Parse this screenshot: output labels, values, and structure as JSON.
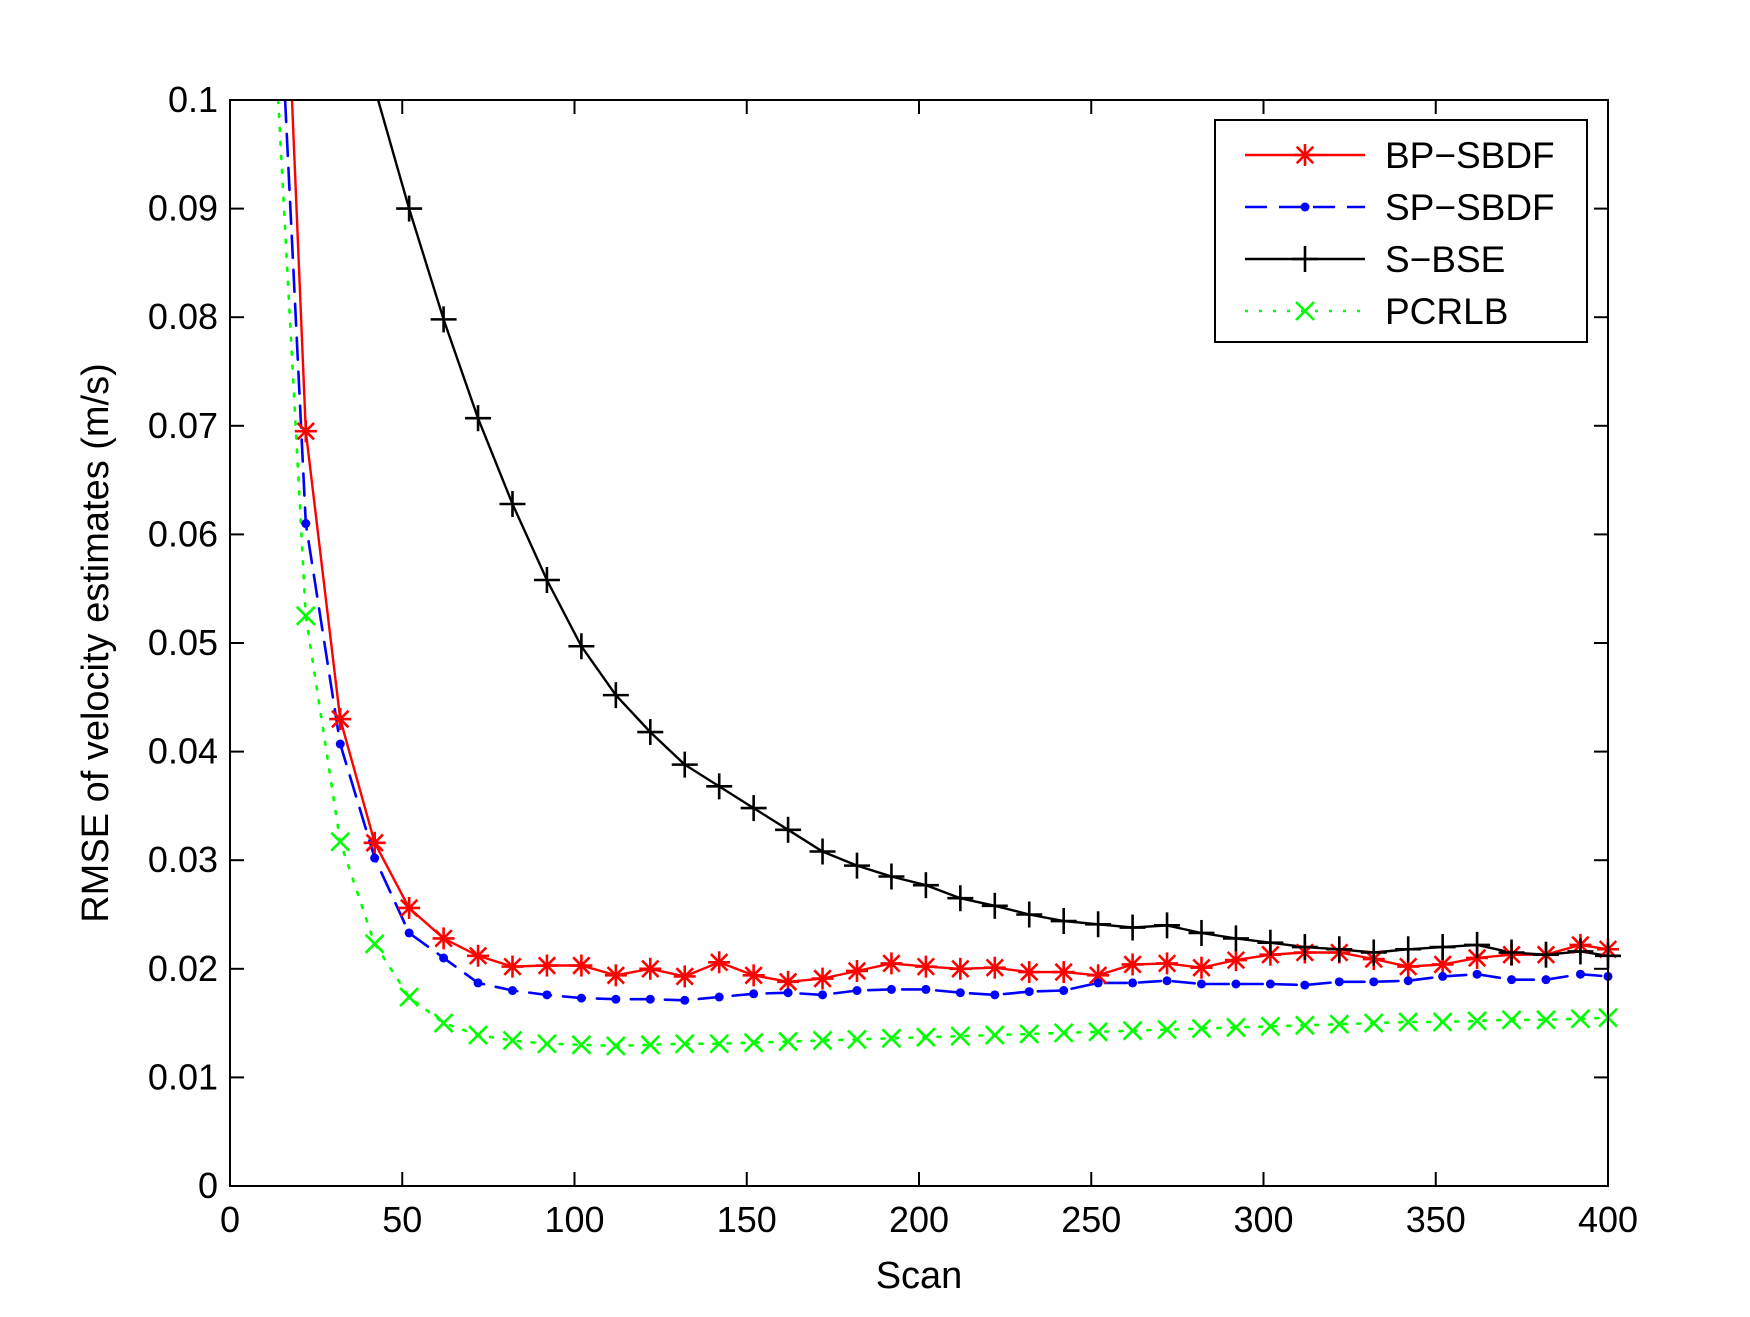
{
  "chart_data": {
    "type": "line",
    "xlabel": "Scan",
    "ylabel": "RMSE of velocity estimates (m/s)",
    "xlim": [
      0,
      400
    ],
    "ylim": [
      0,
      0.1
    ],
    "xticks": [
      "0",
      "50",
      "100",
      "150",
      "200",
      "250",
      "300",
      "350",
      "400"
    ],
    "yticks": [
      "0",
      "0.01",
      "0.02",
      "0.03",
      "0.04",
      "0.05",
      "0.06",
      "0.07",
      "0.08",
      "0.09",
      "0.1"
    ],
    "grid": false,
    "legend_position": "top-right",
    "series": [
      {
        "name": "BP−SBDF",
        "color": "#ff0000",
        "line_style": "solid",
        "marker": "asterisk",
        "x": [
          18,
          22,
          32,
          42,
          52,
          62,
          72,
          82,
          92,
          102,
          112,
          122,
          132,
          142,
          152,
          162,
          172,
          182,
          192,
          202,
          212,
          222,
          232,
          242,
          252,
          262,
          272,
          282,
          292,
          302,
          312,
          322,
          332,
          342,
          352,
          362,
          372,
          382,
          392,
          400
        ],
        "y": [
          0.1,
          0.0695,
          0.043,
          0.0316,
          0.0256,
          0.0228,
          0.0212,
          0.0202,
          0.0203,
          0.0203,
          0.0194,
          0.02,
          0.0193,
          0.0206,
          0.0194,
          0.0188,
          0.0191,
          0.0198,
          0.0205,
          0.0202,
          0.02,
          0.0201,
          0.0197,
          0.0197,
          0.0194,
          0.0204,
          0.0205,
          0.0201,
          0.0208,
          0.0213,
          0.0215,
          0.0215,
          0.0209,
          0.0202,
          0.0204,
          0.021,
          0.0213,
          0.0213,
          0.0222,
          0.0218
        ],
        "marker_x": [
          22,
          32,
          42,
          52,
          62,
          72,
          82,
          92,
          102,
          112,
          122,
          132,
          142,
          152,
          162,
          172,
          182,
          192,
          202,
          212,
          222,
          232,
          242,
          252,
          262,
          272,
          282,
          292,
          302,
          312,
          322,
          332,
          342,
          352,
          362,
          372,
          382,
          392,
          400
        ]
      },
      {
        "name": "SP−SBDF",
        "color": "#0000ff",
        "line_style": "dashed",
        "marker": "dot",
        "x": [
          16,
          22,
          32,
          42,
          52,
          62,
          72,
          82,
          92,
          102,
          112,
          122,
          132,
          142,
          152,
          162,
          172,
          182,
          192,
          202,
          212,
          222,
          232,
          242,
          252,
          262,
          272,
          282,
          292,
          302,
          312,
          322,
          332,
          342,
          352,
          362,
          372,
          382,
          392,
          400
        ],
        "y": [
          0.1,
          0.061,
          0.0407,
          0.0302,
          0.0233,
          0.021,
          0.0187,
          0.018,
          0.0176,
          0.0173,
          0.0172,
          0.0172,
          0.0171,
          0.0174,
          0.0177,
          0.0178,
          0.0176,
          0.018,
          0.0181,
          0.0181,
          0.0178,
          0.0176,
          0.0179,
          0.018,
          0.0187,
          0.0187,
          0.0189,
          0.0186,
          0.0186,
          0.0186,
          0.0185,
          0.0188,
          0.0188,
          0.0189,
          0.0193,
          0.0195,
          0.019,
          0.019,
          0.0195,
          0.0193
        ],
        "marker_x": [
          22,
          32,
          42,
          52,
          62,
          72,
          82,
          92,
          102,
          112,
          122,
          132,
          142,
          152,
          162,
          172,
          182,
          192,
          202,
          212,
          222,
          232,
          242,
          252,
          262,
          272,
          282,
          292,
          302,
          312,
          322,
          332,
          342,
          352,
          362,
          372,
          382,
          392,
          400
        ]
      },
      {
        "name": "S−BSE",
        "color": "#000000",
        "line_style": "solid",
        "marker": "plus",
        "x": [
          43,
          52,
          62,
          72,
          82,
          92,
          102,
          112,
          122,
          132,
          142,
          152,
          162,
          172,
          182,
          192,
          202,
          212,
          222,
          232,
          242,
          252,
          262,
          272,
          282,
          292,
          302,
          312,
          322,
          332,
          342,
          352,
          362,
          372,
          382,
          392,
          400
        ],
        "y": [
          0.1,
          0.09,
          0.0798,
          0.0707,
          0.0628,
          0.0558,
          0.0497,
          0.0452,
          0.0418,
          0.0388,
          0.0368,
          0.0348,
          0.0328,
          0.0308,
          0.0295,
          0.0285,
          0.0277,
          0.0265,
          0.0258,
          0.025,
          0.0244,
          0.0241,
          0.0238,
          0.024,
          0.0233,
          0.0228,
          0.0224,
          0.022,
          0.0218,
          0.0215,
          0.0218,
          0.022,
          0.0222,
          0.0215,
          0.0213,
          0.0216,
          0.0212
        ],
        "marker_x": [
          52,
          62,
          72,
          82,
          92,
          102,
          112,
          122,
          132,
          142,
          152,
          162,
          172,
          182,
          192,
          202,
          212,
          222,
          232,
          242,
          252,
          262,
          272,
          282,
          292,
          302,
          312,
          322,
          332,
          342,
          352,
          362,
          372,
          382,
          392,
          400
        ]
      },
      {
        "name": "PCRLB",
        "color": "#00ff00",
        "line_style": "dotted",
        "marker": "x",
        "x": [
          14,
          22,
          32,
          42,
          52,
          62,
          72,
          82,
          92,
          102,
          112,
          122,
          132,
          142,
          152,
          162,
          172,
          182,
          192,
          202,
          212,
          222,
          232,
          242,
          252,
          262,
          272,
          282,
          292,
          302,
          312,
          322,
          332,
          342,
          352,
          362,
          372,
          382,
          392,
          400
        ],
        "y": [
          0.1,
          0.0525,
          0.0317,
          0.0223,
          0.0174,
          0.015,
          0.0139,
          0.0134,
          0.0131,
          0.013,
          0.0129,
          0.013,
          0.0131,
          0.0131,
          0.0132,
          0.0133,
          0.0134,
          0.0135,
          0.0136,
          0.0137,
          0.0138,
          0.0139,
          0.014,
          0.0141,
          0.0142,
          0.0143,
          0.0144,
          0.0145,
          0.0146,
          0.0147,
          0.0148,
          0.0149,
          0.015,
          0.0151,
          0.0151,
          0.0152,
          0.0153,
          0.0153,
          0.0154,
          0.0155
        ],
        "marker_x": [
          22,
          32,
          42,
          52,
          62,
          72,
          82,
          92,
          102,
          112,
          122,
          132,
          142,
          152,
          162,
          172,
          182,
          192,
          202,
          212,
          222,
          232,
          242,
          252,
          262,
          272,
          282,
          292,
          302,
          312,
          322,
          332,
          342,
          352,
          362,
          372,
          382,
          392,
          400
        ]
      }
    ]
  }
}
